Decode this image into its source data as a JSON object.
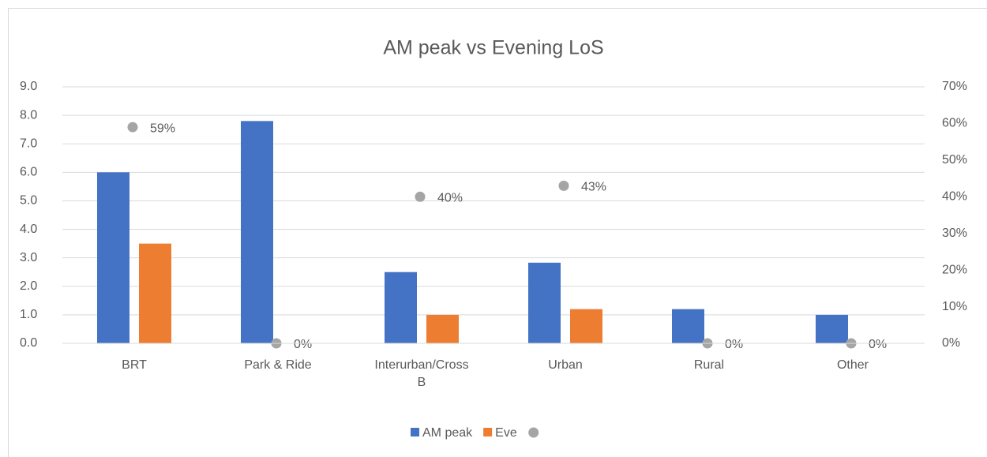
{
  "chart_data": {
    "type": "bar",
    "title": "AM peak vs Evening LoS",
    "categories": [
      "BRT",
      "Park & Ride",
      "Interurban/Cross B",
      "Urban",
      "Rural",
      "Other"
    ],
    "series": [
      {
        "name": "AM peak",
        "color": "#4472c4",
        "values": [
          6.0,
          7.8,
          2.5,
          2.83,
          1.2,
          1.0
        ]
      },
      {
        "name": "Eve",
        "color": "#ed7d31",
        "values": [
          3.5,
          0,
          1.0,
          1.2,
          0,
          0
        ]
      },
      {
        "color": "#a5a5a5",
        "axis": "y2",
        "values": [
          59,
          0,
          40,
          43,
          0,
          0
        ],
        "value_labels": [
          "59%",
          "0%",
          "40%",
          "43%",
          "0%",
          "0%"
        ]
      }
    ],
    "ylim": [
      0,
      9
    ],
    "yticks": [
      {
        "value": 0,
        "label": "0.0"
      },
      {
        "value": 1,
        "label": "1.0"
      },
      {
        "value": 2,
        "label": "2.0"
      },
      {
        "value": 3,
        "label": "3.0"
      },
      {
        "value": 4,
        "label": "4.0"
      },
      {
        "value": 5,
        "label": "5.0"
      },
      {
        "value": 6,
        "label": "6.0"
      },
      {
        "value": 7,
        "label": "7.0"
      },
      {
        "value": 8,
        "label": "8.0"
      },
      {
        "value": 9,
        "label": "9.0"
      }
    ],
    "y2lim": [
      0,
      70
    ],
    "y2ticks": [
      {
        "value": 0,
        "label": "0%"
      },
      {
        "value": 10,
        "label": "10%"
      },
      {
        "value": 20,
        "label": "20%"
      },
      {
        "value": 30,
        "label": "30%"
      },
      {
        "value": 40,
        "label": "40%"
      },
      {
        "value": 50,
        "label": "50%"
      },
      {
        "value": 60,
        "label": "60%"
      },
      {
        "value": 70,
        "label": "70%"
      }
    ],
    "grid": true,
    "legend": "bottom"
  }
}
